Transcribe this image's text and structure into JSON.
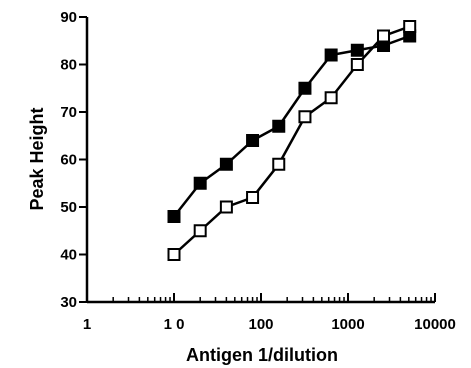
{
  "chart_data": {
    "type": "line",
    "title": "",
    "xlabel": "Antigen 1/dilution",
    "ylabel": "Peak Height",
    "xscale": "log",
    "xlim": [
      1,
      10000
    ],
    "ylim": [
      30,
      90
    ],
    "xticks": [
      1,
      10,
      100,
      1000,
      10000
    ],
    "xtick_labels": [
      "1",
      "1 0",
      "100",
      "1000",
      "10000"
    ],
    "yticks": [
      30,
      40,
      50,
      60,
      70,
      80,
      90
    ],
    "ytick_labels": [
      "30",
      "40",
      "50",
      "60",
      "70",
      "80",
      "90"
    ],
    "grid": false,
    "legend": "none",
    "series": [
      {
        "marker": "filled-square",
        "color": "#000000",
        "x": [
          10,
          20,
          40,
          80,
          160,
          320,
          640,
          1280,
          2560,
          5120
        ],
        "y": [
          48,
          55,
          59,
          64,
          67,
          75,
          82,
          83,
          84,
          86
        ]
      },
      {
        "marker": "open-square",
        "color": "#000000",
        "x": [
          10,
          20,
          40,
          80,
          160,
          320,
          640,
          1280,
          2560,
          5120
        ],
        "y": [
          40,
          45,
          50,
          52,
          59,
          69,
          73,
          80,
          86,
          88
        ]
      }
    ]
  }
}
